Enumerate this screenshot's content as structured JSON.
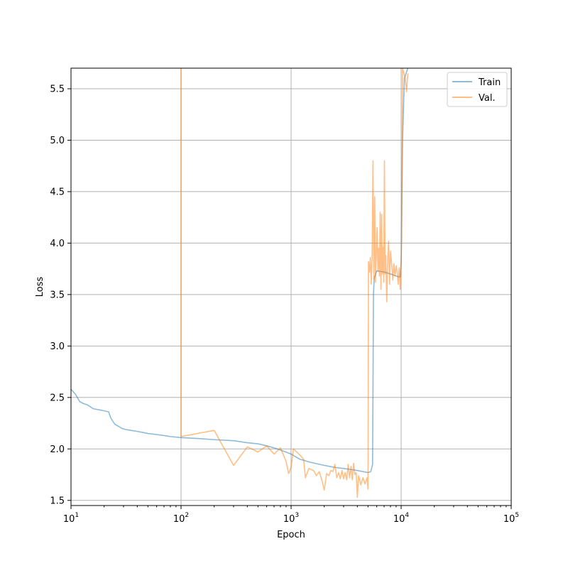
{
  "chart_data": {
    "type": "line",
    "xlabel": "Epoch",
    "ylabel": "Loss",
    "xscale": "log",
    "xlim": [
      10,
      100000
    ],
    "ylim": [
      1.45,
      5.7
    ],
    "grid": true,
    "legend_position": "top-right",
    "x_major_ticks": [
      {
        "value": 10,
        "base": "10",
        "exp": "1"
      },
      {
        "value": 100,
        "base": "10",
        "exp": "2"
      },
      {
        "value": 1000,
        "base": "10",
        "exp": "3"
      },
      {
        "value": 10000,
        "base": "10",
        "exp": "4"
      },
      {
        "value": 100000,
        "base": "10",
        "exp": "5"
      }
    ],
    "y_ticks": [
      {
        "value": 1.5,
        "label": "1.5"
      },
      {
        "value": 2.0,
        "label": "2.0"
      },
      {
        "value": 2.5,
        "label": "2.5"
      },
      {
        "value": 3.0,
        "label": "3.0"
      },
      {
        "value": 3.5,
        "label": "3.5"
      },
      {
        "value": 4.0,
        "label": "4.0"
      },
      {
        "value": 4.5,
        "label": "4.5"
      },
      {
        "value": 5.0,
        "label": "5.0"
      },
      {
        "value": 5.5,
        "label": "5.5"
      }
    ],
    "series": [
      {
        "name": "Train",
        "color": "#1f77b4",
        "points": [
          [
            10,
            2.58
          ],
          [
            11,
            2.53
          ],
          [
            12,
            2.46
          ],
          [
            13,
            2.44
          ],
          [
            14,
            2.43
          ],
          [
            15,
            2.41
          ],
          [
            16,
            2.39
          ],
          [
            18,
            2.38
          ],
          [
            20,
            2.37
          ],
          [
            22,
            2.36
          ],
          [
            23,
            2.3
          ],
          [
            25,
            2.24
          ],
          [
            27,
            2.22
          ],
          [
            29,
            2.2
          ],
          [
            31,
            2.19
          ],
          [
            35,
            2.18
          ],
          [
            40,
            2.17
          ],
          [
            45,
            2.16
          ],
          [
            50,
            2.15
          ],
          [
            60,
            2.14
          ],
          [
            70,
            2.13
          ],
          [
            80,
            2.12
          ],
          [
            100,
            2.11
          ],
          [
            150,
            2.1
          ],
          [
            200,
            2.09
          ],
          [
            300,
            2.08
          ],
          [
            400,
            2.06
          ],
          [
            500,
            2.05
          ],
          [
            600,
            2.03
          ],
          [
            700,
            2.01
          ],
          [
            800,
            1.99
          ],
          [
            1000,
            1.95
          ],
          [
            1200,
            1.9
          ],
          [
            1500,
            1.87
          ],
          [
            2000,
            1.84
          ],
          [
            2500,
            1.82
          ],
          [
            3000,
            1.81
          ],
          [
            3500,
            1.8
          ],
          [
            4000,
            1.79
          ],
          [
            4500,
            1.78
          ],
          [
            5000,
            1.77
          ],
          [
            5300,
            1.78
          ],
          [
            5500,
            1.85
          ],
          [
            5550,
            2.6
          ],
          [
            5600,
            3.5
          ],
          [
            5700,
            3.66
          ],
          [
            6000,
            3.73
          ],
          [
            7000,
            3.72
          ],
          [
            8000,
            3.7
          ],
          [
            9000,
            3.68
          ],
          [
            9800,
            3.67
          ],
          [
            10000,
            3.8
          ],
          [
            10300,
            5.0
          ],
          [
            10700,
            5.6
          ],
          [
            11500,
            5.7
          ]
        ]
      },
      {
        "name": "Val.",
        "color": "#ff7f0e",
        "points": [
          [
            100,
            5.7
          ],
          [
            100,
            2.12
          ],
          [
            200,
            2.18
          ],
          [
            300,
            1.84
          ],
          [
            400,
            2.02
          ],
          [
            500,
            1.97
          ],
          [
            600,
            2.03
          ],
          [
            700,
            1.95
          ],
          [
            800,
            2.01
          ],
          [
            900,
            1.88
          ],
          [
            950,
            1.76
          ],
          [
            1000,
            1.82
          ],
          [
            1050,
            2.0
          ],
          [
            1100,
            1.98
          ],
          [
            1200,
            1.94
          ],
          [
            1300,
            1.9
          ],
          [
            1350,
            1.72
          ],
          [
            1450,
            1.81
          ],
          [
            1600,
            1.79
          ],
          [
            1700,
            1.74
          ],
          [
            1800,
            1.78
          ],
          [
            1900,
            1.7
          ],
          [
            2000,
            1.6
          ],
          [
            2100,
            1.76
          ],
          [
            2200,
            1.74
          ],
          [
            2300,
            1.79
          ],
          [
            2400,
            1.78
          ],
          [
            2500,
            1.85
          ],
          [
            2600,
            1.72
          ],
          [
            2700,
            1.77
          ],
          [
            2800,
            1.71
          ],
          [
            2900,
            1.79
          ],
          [
            3000,
            1.71
          ],
          [
            3100,
            1.77
          ],
          [
            3200,
            1.7
          ],
          [
            3300,
            1.85
          ],
          [
            3400,
            1.72
          ],
          [
            3500,
            1.83
          ],
          [
            3600,
            1.7
          ],
          [
            3700,
            1.86
          ],
          [
            3800,
            1.75
          ],
          [
            3900,
            1.77
          ],
          [
            4000,
            1.53
          ],
          [
            4100,
            1.74
          ],
          [
            4200,
            1.7
          ],
          [
            4300,
            1.65
          ],
          [
            4500,
            1.72
          ],
          [
            4700,
            1.66
          ],
          [
            4900,
            1.72
          ],
          [
            5000,
            1.61
          ],
          [
            5050,
            3.82
          ],
          [
            5150,
            3.72
          ],
          [
            5250,
            3.86
          ],
          [
            5350,
            3.6
          ],
          [
            5450,
            3.88
          ],
          [
            5550,
            4.8
          ],
          [
            5650,
            3.65
          ],
          [
            5750,
            4.45
          ],
          [
            5850,
            3.62
          ],
          [
            5950,
            3.9
          ],
          [
            6050,
            4.15
          ],
          [
            6150,
            3.73
          ],
          [
            6250,
            3.95
          ],
          [
            6350,
            3.68
          ],
          [
            6450,
            4.3
          ],
          [
            6550,
            3.55
          ],
          [
            6650,
            4.28
          ],
          [
            6750,
            3.7
          ],
          [
            6850,
            3.96
          ],
          [
            6950,
            3.62
          ],
          [
            7050,
            4.8
          ],
          [
            7150,
            3.7
          ],
          [
            7250,
            3.88
          ],
          [
            7400,
            3.43
          ],
          [
            7550,
            3.85
          ],
          [
            7700,
            4.02
          ],
          [
            7850,
            3.6
          ],
          [
            8000,
            3.92
          ],
          [
            8200,
            3.8
          ],
          [
            8400,
            3.64
          ],
          [
            8600,
            3.8
          ],
          [
            8800,
            3.68
          ],
          [
            9000,
            3.78
          ],
          [
            9200,
            3.72
          ],
          [
            9400,
            3.6
          ],
          [
            9600,
            3.76
          ],
          [
            9800,
            3.55
          ],
          [
            9950,
            3.7
          ],
          [
            10100,
            4.0
          ],
          [
            10300,
            5.7
          ],
          [
            10900,
            5.6
          ],
          [
            11200,
            5.47
          ],
          [
            11500,
            5.65
          ]
        ]
      }
    ]
  }
}
